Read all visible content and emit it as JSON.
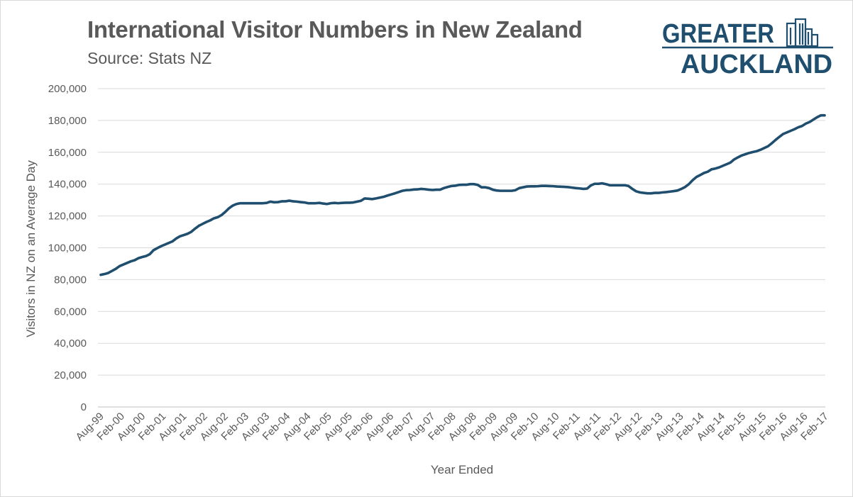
{
  "chart_data": {
    "type": "line",
    "title": "International Visitor Numbers in New Zealand",
    "subtitle": "Source: Stats NZ",
    "xlabel": "Year Ended",
    "ylabel": "Visitors in NZ on an Average Day",
    "ylim": [
      0,
      200000
    ],
    "y_ticks": [
      "0",
      "20,000",
      "40,000",
      "60,000",
      "80,000",
      "100,000",
      "120,000",
      "140,000",
      "160,000",
      "180,000",
      "200,000"
    ],
    "y_tick_values": [
      0,
      20000,
      40000,
      60000,
      80000,
      100000,
      120000,
      140000,
      160000,
      180000,
      200000
    ],
    "x_ticks": [
      "Aug-99",
      "Feb-00",
      "Aug-00",
      "Feb-01",
      "Aug-01",
      "Feb-02",
      "Aug-02",
      "Feb-03",
      "Aug-03",
      "Feb-04",
      "Aug-04",
      "Feb-05",
      "Aug-05",
      "Feb-06",
      "Aug-06",
      "Feb-07",
      "Aug-07",
      "Feb-08",
      "Aug-08",
      "Feb-09",
      "Aug-09",
      "Feb-10",
      "Aug-10",
      "Feb-11",
      "Aug-11",
      "Feb-12",
      "Aug-12",
      "Feb-13",
      "Aug-13",
      "Feb-14",
      "Aug-14",
      "Feb-15",
      "Aug-15",
      "Feb-16",
      "Aug-16",
      "Feb-17"
    ],
    "grid": true,
    "series": [
      {
        "name": "Visitors in NZ on an Average Day",
        "color": "#1f4e6e",
        "values": [
          83000,
          83500,
          84200,
          85500,
          86800,
          88500,
          89500,
          90500,
          91500,
          92200,
          93500,
          94200,
          94800,
          96000,
          98500,
          99800,
          101000,
          102000,
          103000,
          104000,
          105800,
          107200,
          108000,
          108800,
          110000,
          112000,
          113800,
          115000,
          116200,
          117200,
          118500,
          119200,
          120500,
          122500,
          124800,
          126500,
          127500,
          128000,
          128000,
          128000,
          128000,
          128000,
          128000,
          128000,
          128200,
          129000,
          128600,
          128700,
          129200,
          129200,
          129600,
          129200,
          129000,
          128700,
          128500,
          128000,
          128000,
          128000,
          128200,
          127800,
          127500,
          128000,
          128200,
          128000,
          128200,
          128300,
          128300,
          128500,
          129000,
          129500,
          131000,
          130800,
          130600,
          131000,
          131500,
          132000,
          132800,
          133500,
          134200,
          135000,
          135800,
          136200,
          136300,
          136600,
          136700,
          137000,
          136800,
          136500,
          136300,
          136500,
          136500,
          137500,
          138200,
          138800,
          139000,
          139500,
          139600,
          139600,
          140000,
          140000,
          139500,
          138000,
          138000,
          137500,
          136500,
          136000,
          135800,
          135800,
          135800,
          135800,
          136200,
          137500,
          138000,
          138500,
          138600,
          138600,
          138700,
          138900,
          138900,
          138800,
          138700,
          138500,
          138400,
          138300,
          138100,
          137800,
          137500,
          137300,
          137000,
          137200,
          139200,
          140200,
          140200,
          140500,
          140000,
          139300,
          139300,
          139300,
          139300,
          139300,
          138800,
          137000,
          135500,
          134800,
          134500,
          134200,
          134200,
          134500,
          134500,
          134800,
          135000,
          135300,
          135600,
          136000,
          137000,
          138200,
          140000,
          142500,
          144500,
          145700,
          147000,
          147800,
          149300,
          149800,
          150500,
          151500,
          152500,
          153500,
          155500,
          156800,
          158000,
          158800,
          159600,
          160200,
          160700,
          161600,
          162700,
          163800,
          165700,
          167800,
          169700,
          171500,
          172500,
          173500,
          174500,
          175700,
          176500,
          178000,
          179000,
          180500,
          182000,
          183200,
          183200
        ]
      }
    ]
  },
  "logo": {
    "line1": "GREATER",
    "line2": "AUCKLAND",
    "color": "#1f4e6e"
  }
}
